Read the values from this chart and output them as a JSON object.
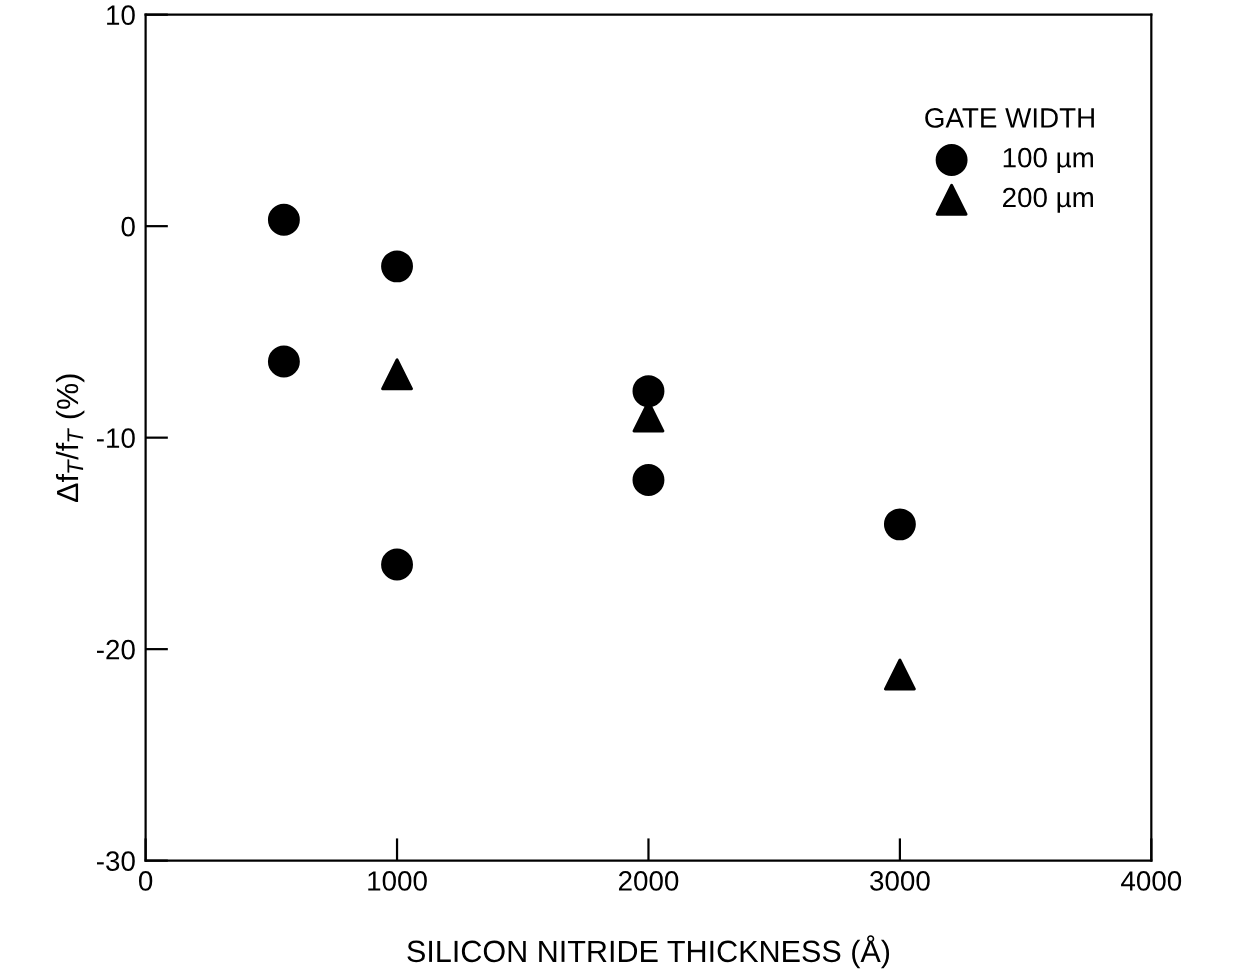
{
  "chart_data": {
    "type": "scatter",
    "xlabel": "SILICON NITRIDE THICKNESS (Å)",
    "ylabel": "Δf$_{T}$/f$_{T}$ (%)",
    "legend_title": "GATE WIDTH",
    "legend": "top right",
    "xlim": [
      0,
      4000
    ],
    "ylim": [
      -30,
      10
    ],
    "xticks": [
      0,
      1000,
      2000,
      3000,
      4000
    ],
    "yticks": [
      -30,
      -20,
      -10,
      0,
      10
    ],
    "grid": false,
    "series": [
      {
        "name": "100 µm",
        "color": "#000000",
        "marker": "circle",
        "x": [
          550,
          550,
          1000,
          1000,
          2000,
          2000,
          3000
        ],
        "values": [
          0.3,
          -6.4,
          -1.9,
          -16,
          -7.8,
          -12,
          -14.1
        ]
      },
      {
        "name": "200 µm",
        "color": "#000000",
        "marker": "triangle",
        "x": [
          1000,
          2000,
          3000
        ],
        "values": [
          -7,
          -9,
          -21.2
        ]
      }
    ]
  }
}
